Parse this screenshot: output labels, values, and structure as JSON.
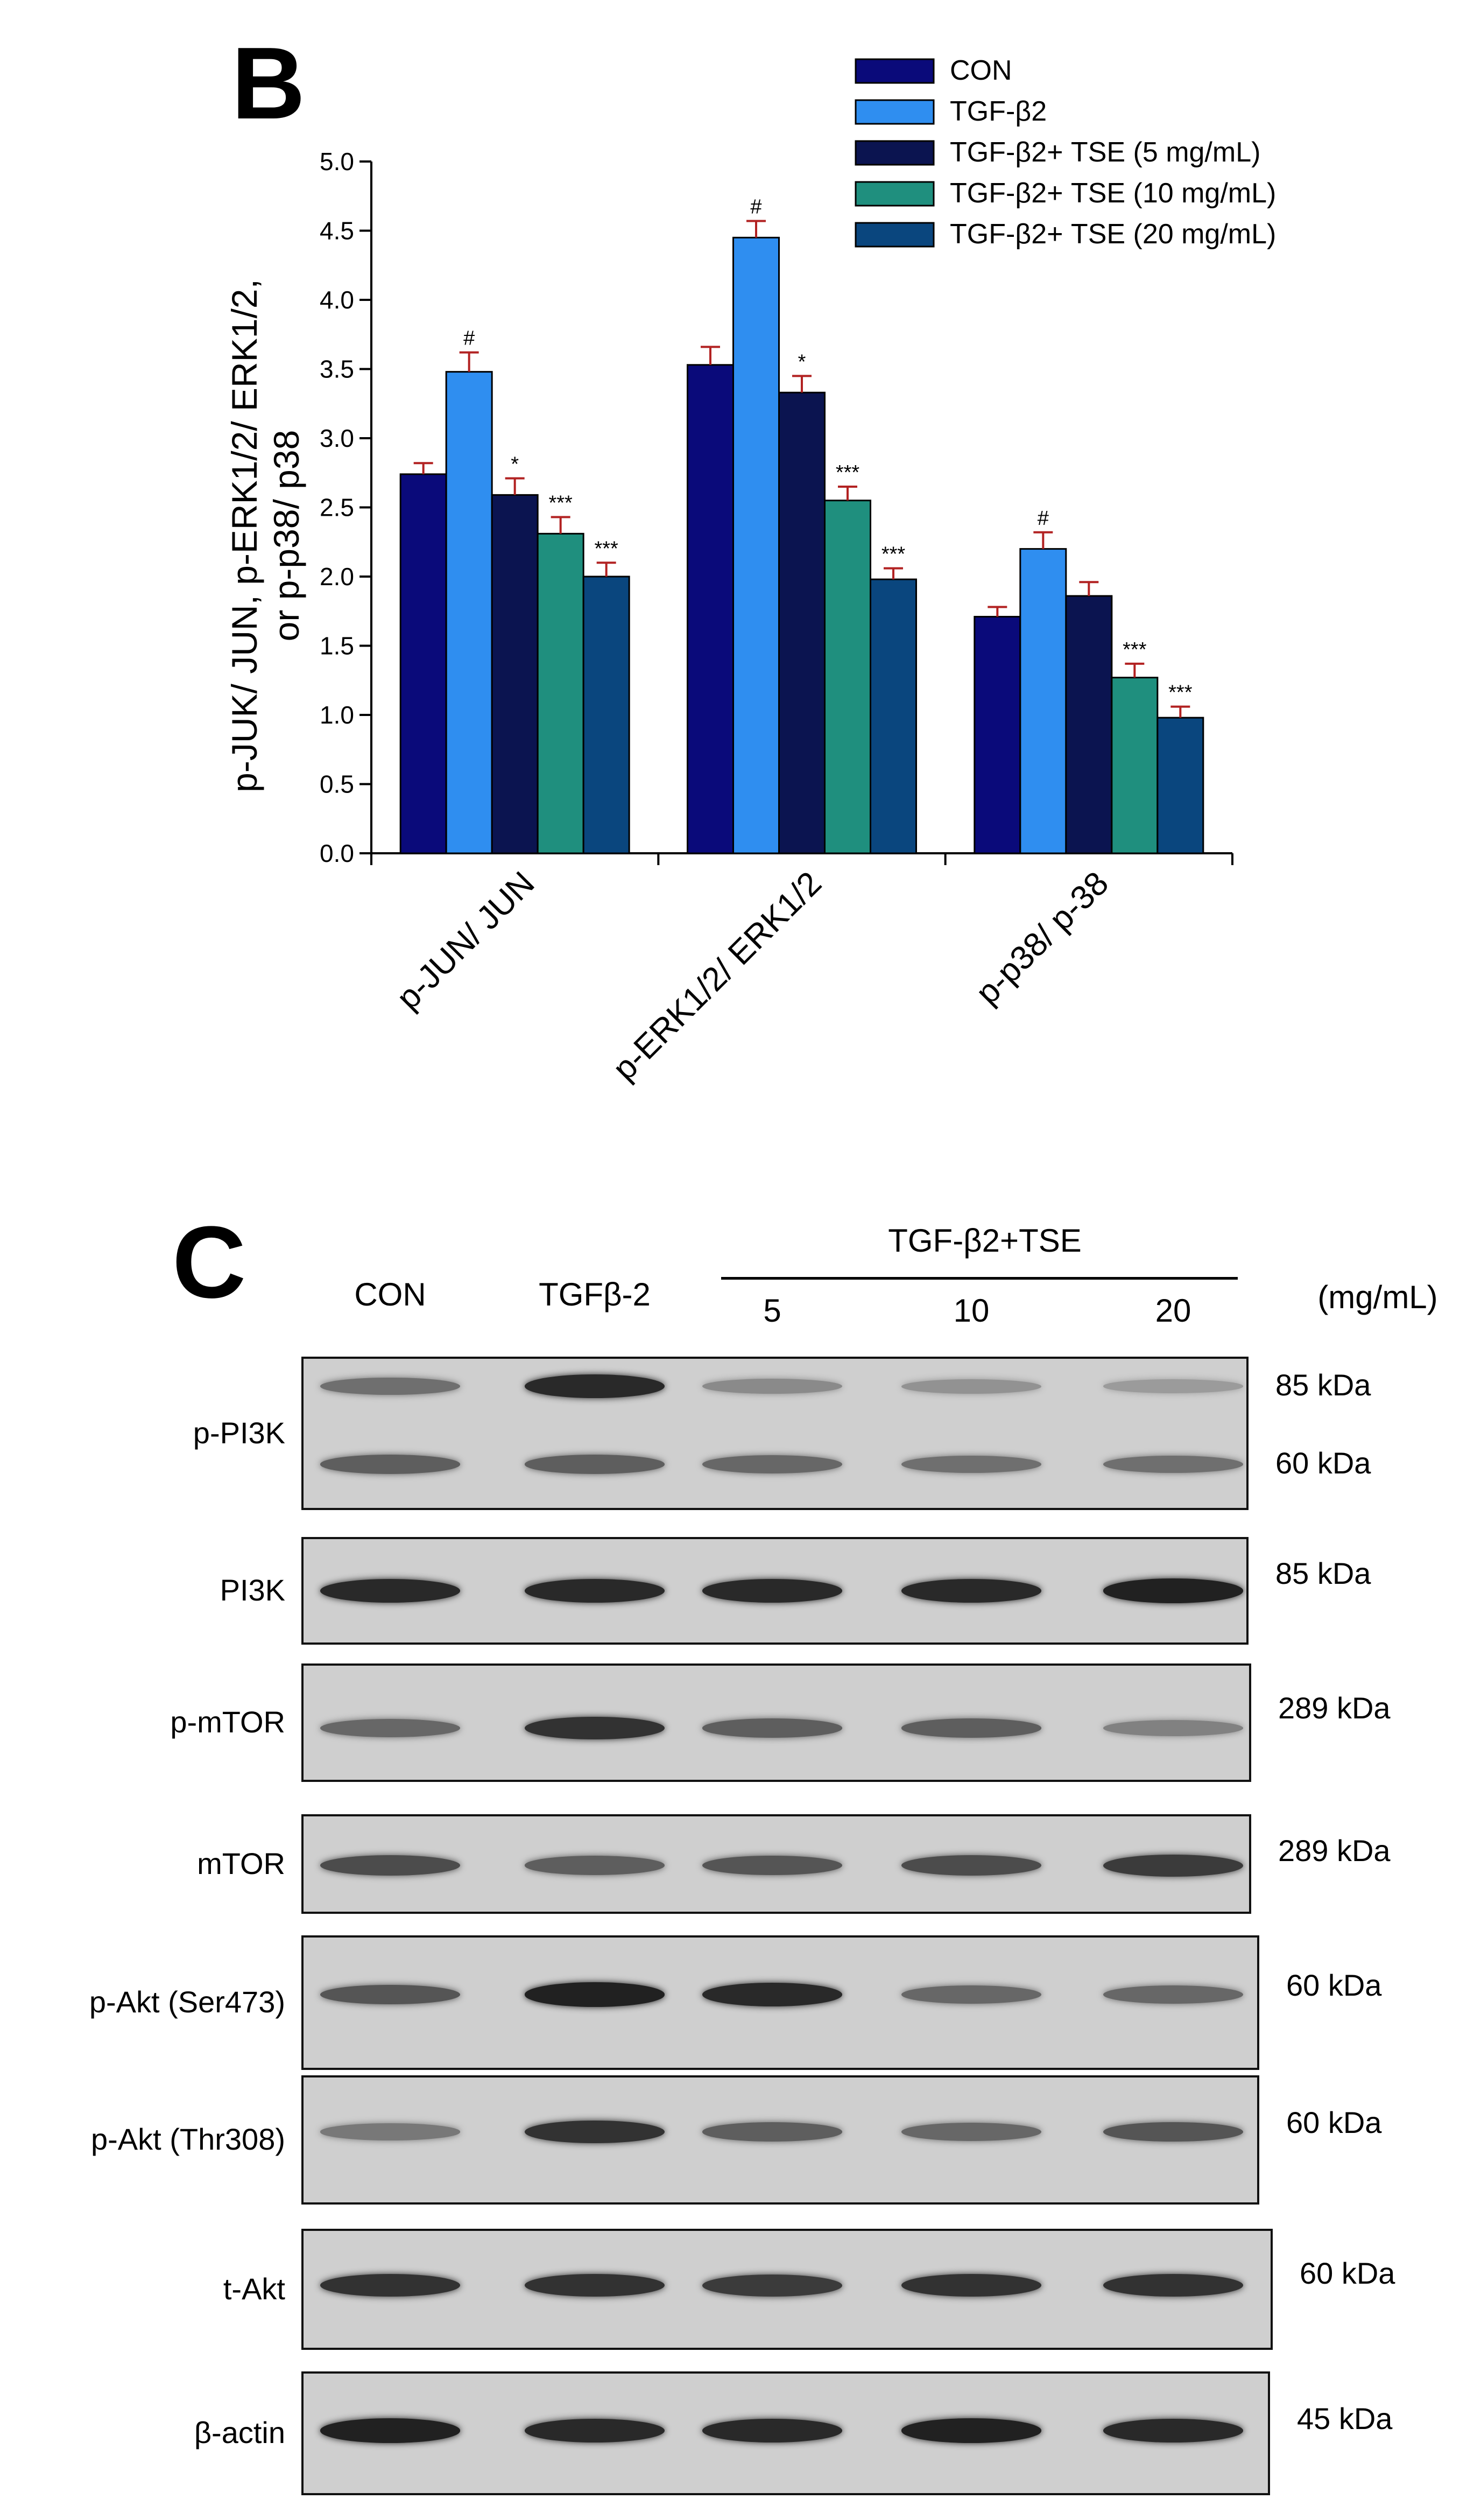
{
  "panel_b": {
    "letter": "B",
    "y_axis_label_line1": "p-JUK/ JUN, p-ERK1/2/ ERK1/2,",
    "y_axis_label_line2": "or p-p38/ p38"
  },
  "chart_data": {
    "type": "bar",
    "title": "",
    "categories": [
      "p-JUN/ JUN",
      "p-ERK1/2/ ERK1/2",
      "p-p38/ p-38"
    ],
    "ylim": [
      0,
      5.0
    ],
    "yticks": [
      "0.0",
      "0.5",
      "1.0",
      "1.5",
      "2.0",
      "2.5",
      "3.0",
      "3.5",
      "4.0",
      "4.5",
      "5.0"
    ],
    "grid": false,
    "legend_position": "top-right",
    "series": [
      {
        "name": "CON",
        "color": "#0a0a7a",
        "values": [
          2.74,
          3.53,
          1.71
        ],
        "errors": [
          0.08,
          0.13,
          0.07
        ],
        "sig": [
          "",
          "",
          ""
        ]
      },
      {
        "name": "TGF-β2",
        "color": "#2f8ef0",
        "values": [
          3.48,
          4.45,
          2.2
        ],
        "errors": [
          0.14,
          0.12,
          0.12
        ],
        "sig": [
          "#",
          "#",
          "#"
        ]
      },
      {
        "name": "TGF-β2+ TSE (5 mg/mL)",
        "color": "#0b1450",
        "values": [
          2.59,
          3.33,
          1.86
        ],
        "errors": [
          0.12,
          0.12,
          0.1
        ],
        "sig": [
          "*",
          "*",
          ""
        ]
      },
      {
        "name": "TGF-β2+ TSE (10 mg/mL)",
        "color": "#1f8f7e",
        "values": [
          2.31,
          2.55,
          1.27
        ],
        "errors": [
          0.12,
          0.1,
          0.1
        ],
        "sig": [
          "***",
          "***",
          "***"
        ]
      },
      {
        "name": "TGF-β2+ TSE (20 mg/mL)",
        "color": "#0a467e",
        "values": [
          2.0,
          1.98,
          0.98
        ],
        "errors": [
          0.1,
          0.08,
          0.08
        ],
        "sig": [
          "***",
          "***",
          "***"
        ]
      }
    ]
  },
  "panel_c": {
    "letter": "C",
    "lanes": [
      "CON",
      "TGFβ-2",
      "5",
      "10",
      "20"
    ],
    "group_label": "TGF-β2+TSE",
    "unit_label": "(mg/mL)",
    "blots": [
      {
        "label": "p-PI3K",
        "kda": [
          "85 kDa",
          "60 kDa"
        ],
        "intensities": [
          [
            0.45,
            0.85,
            0.3,
            0.25,
            0.2
          ],
          [
            0.55,
            0.55,
            0.5,
            0.45,
            0.45
          ]
        ]
      },
      {
        "label": "PI3K",
        "kda": [
          "85 kDa"
        ],
        "intensities": [
          [
            0.85,
            0.85,
            0.85,
            0.85,
            0.9
          ]
        ]
      },
      {
        "label": "p-mTOR",
        "kda": [
          "289 kDa"
        ],
        "intensities": [
          [
            0.5,
            0.8,
            0.55,
            0.55,
            0.35
          ]
        ]
      },
      {
        "label": "mTOR",
        "kda": [
          "289 kDa"
        ],
        "intensities": [
          [
            0.65,
            0.55,
            0.6,
            0.65,
            0.75
          ]
        ]
      },
      {
        "label": "p-Akt (Ser473)",
        "kda": [
          "60 kDa"
        ],
        "intensities": [
          [
            0.6,
            0.9,
            0.85,
            0.5,
            0.5
          ]
        ]
      },
      {
        "label": "p-Akt (Thr308)",
        "kda": [
          "60 kDa"
        ],
        "intensities": [
          [
            0.4,
            0.8,
            0.55,
            0.5,
            0.6
          ]
        ]
      },
      {
        "label": "t-Akt",
        "kda": [
          "60 kDa"
        ],
        "intensities": [
          [
            0.8,
            0.8,
            0.75,
            0.8,
            0.8
          ]
        ]
      },
      {
        "label": "β-actin",
        "kda": [
          "45 kDa"
        ],
        "intensities": [
          [
            0.9,
            0.85,
            0.85,
            0.9,
            0.85
          ]
        ]
      }
    ]
  }
}
